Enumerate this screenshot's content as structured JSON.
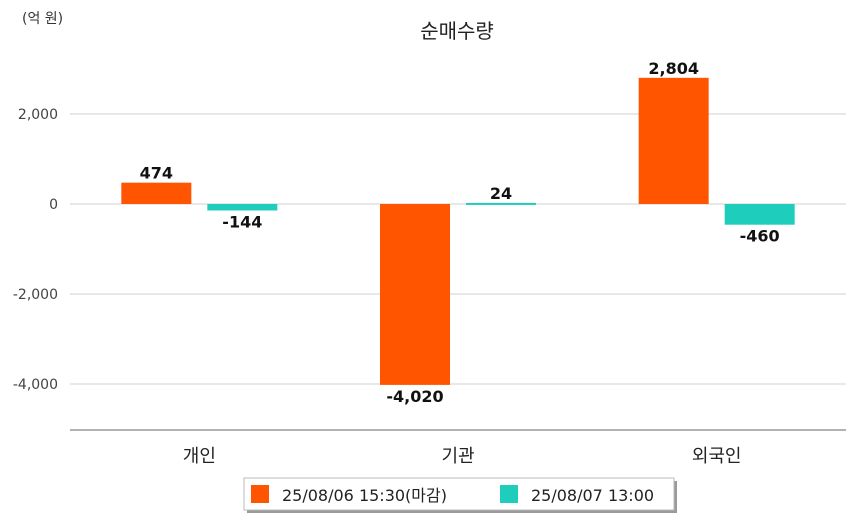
{
  "chart_data": {
    "type": "bar",
    "title": "순매수량",
    "unit_label": "(억 원)",
    "categories": [
      "개인",
      "기관",
      "외국인"
    ],
    "series": [
      {
        "name": "25/08/06 15:30(마감)",
        "color": "#ff5500",
        "values": [
          474,
          -4020,
          2804
        ],
        "labels": [
          "474",
          "-4,020",
          "2,804"
        ]
      },
      {
        "name": "25/08/07 13:00",
        "color": "#1ecdbc",
        "values": [
          -144,
          24,
          -460
        ],
        "labels": [
          "-144",
          "24",
          "-460"
        ]
      }
    ],
    "yticks": [
      2000,
      0,
      -2000,
      -4000
    ],
    "ytick_labels": [
      "2,000",
      "0",
      "-2,000",
      "-4,000"
    ],
    "ylim": [
      -5000,
      3000
    ],
    "grid": true,
    "legend_position": "bottom-center"
  }
}
